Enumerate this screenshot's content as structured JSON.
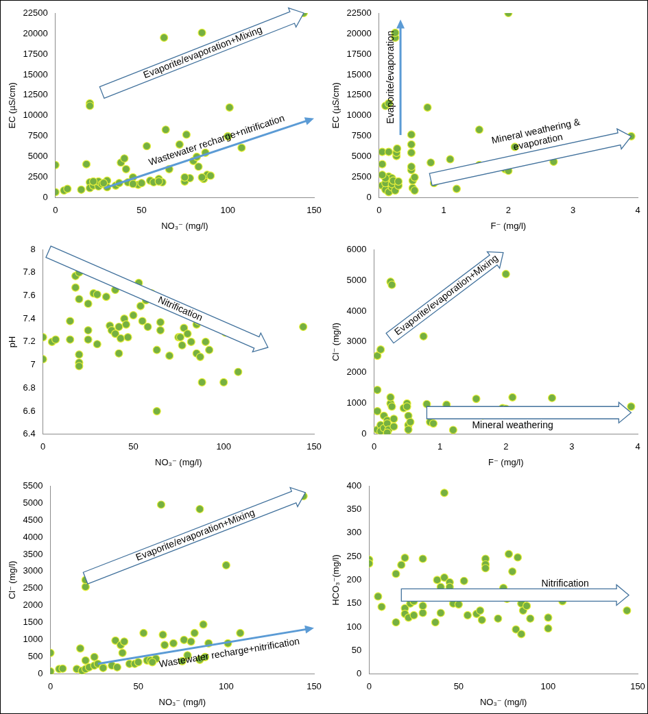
{
  "chart_data": [
    {
      "type": "scatter",
      "x_label": "NO₃⁻ (mg/l)",
      "y_label": "EC (µS/cm)",
      "color": "#76b041",
      "marker": "circle",
      "grid": false,
      "xlim": [
        0,
        150
      ],
      "xticks": [
        0,
        50,
        100,
        150
      ],
      "ylim": [
        0,
        22500
      ],
      "yticks": [
        0,
        2500,
        5000,
        7500,
        10000,
        12500,
        15000,
        17500,
        20000,
        22500
      ],
      "x": [
        0,
        0,
        5,
        7,
        15,
        18,
        20,
        20,
        20,
        20,
        22,
        25,
        25,
        27,
        30,
        30,
        35,
        37,
        38,
        40,
        41,
        42,
        45,
        48,
        50,
        53,
        55,
        57,
        60,
        62,
        63,
        64,
        66,
        72,
        75,
        76,
        78,
        80,
        82,
        83,
        85,
        86,
        87,
        88,
        90,
        100,
        101,
        108,
        144,
        85,
        75,
        60,
        45,
        28,
        22
      ],
      "values": [
        4000,
        700,
        900,
        1100,
        1000,
        4100,
        11500,
        11200,
        1900,
        1200,
        1500,
        1400,
        2000,
        1700,
        2100,
        1300,
        1500,
        1800,
        4300,
        4800,
        3500,
        1900,
        2500,
        1600,
        1800,
        6300,
        2100,
        1900,
        2300,
        1900,
        19500,
        8300,
        3500,
        6500,
        2000,
        7700,
        2400,
        4500,
        5000,
        3800,
        20100,
        2300,
        5500,
        2800,
        2700,
        7500,
        11000,
        6100,
        22500,
        2500,
        2500,
        2000,
        1700,
        1800,
        2000
      ],
      "annotations": [
        {
          "text": "Evaporite/evaporation+Mixing"
        },
        {
          "text": "Wastewater recharge+nitrification"
        }
      ]
    },
    {
      "type": "scatter",
      "x_label": "F⁻ (mg/l)",
      "y_label": "EC (µS/cm)",
      "color": "#76b041",
      "marker": "circle",
      "grid": false,
      "xlim": [
        0,
        4
      ],
      "xticks": [
        0,
        1,
        2,
        3,
        4
      ],
      "ylim": [
        0,
        22500
      ],
      "yticks": [
        0,
        2500,
        5000,
        7500,
        10000,
        12500,
        15000,
        17500,
        20000,
        22500
      ],
      "x": [
        0.05,
        0.1,
        0.15,
        0.25,
        0.25,
        0.27,
        0.27,
        0.28,
        0.05,
        0.1,
        0.1,
        0.15,
        0.15,
        0.2,
        0.2,
        0.2,
        0.22,
        0.25,
        0.3,
        0.3,
        0.1,
        0.05,
        0.5,
        0.5,
        0.5,
        0.5,
        0.5,
        0.52,
        0.52,
        0.55,
        0.55,
        0.75,
        0.8,
        0.85,
        0.9,
        1.1,
        1.2,
        1.55,
        1.55,
        1.6,
        1.95,
        2.0,
        2.0,
        2.1,
        2.7,
        3.9,
        0.05,
        0.15
      ],
      "values": [
        4100,
        11200,
        11500,
        19500,
        20100,
        5100,
        5500,
        6000,
        1500,
        1000,
        1800,
        700,
        2600,
        1300,
        2400,
        1700,
        2100,
        900,
        1500,
        2000,
        2400,
        2800,
        3400,
        3800,
        5500,
        6500,
        7700,
        2100,
        1200,
        900,
        2500,
        11000,
        4300,
        1800,
        2100,
        4700,
        1100,
        8300,
        4000,
        3400,
        3500,
        22500,
        3300,
        6200,
        4400,
        7500,
        5600,
        5600
      ],
      "annotations": [
        {
          "text": "Evaporite/evaporation"
        },
        {
          "text": [
            "Mineral weathering &",
            "evaporation"
          ]
        }
      ]
    },
    {
      "type": "scatter",
      "x_label": "NO₃⁻ (mg/l)",
      "y_label": "pH",
      "color": "#76b041",
      "marker": "circle",
      "grid": false,
      "xlim": [
        0,
        150
      ],
      "xticks": [
        0,
        50,
        100,
        150
      ],
      "ylim": [
        6.4,
        8
      ],
      "yticks": [
        6.4,
        6.6,
        6.8,
        7,
        7.2,
        7.4,
        7.6,
        7.8,
        8
      ],
      "x": [
        0,
        0,
        5,
        7,
        15,
        15,
        18,
        18,
        20,
        20,
        20,
        20,
        20,
        25,
        25,
        25,
        28,
        30,
        30,
        35,
        37,
        38,
        40,
        40,
        42,
        42,
        43,
        45,
        46,
        47,
        50,
        53,
        54,
        55,
        57,
        58,
        60,
        63,
        63,
        65,
        65,
        70,
        75,
        76,
        78,
        77,
        80,
        82,
        85,
        85,
        86,
        87,
        88,
        90,
        92,
        100,
        101,
        108,
        144
      ],
      "values": [
        7.24,
        7.05,
        7.2,
        7.22,
        7.38,
        7.22,
        7.77,
        7.67,
        7.8,
        7.57,
        7.09,
        7.02,
        6.99,
        7.53,
        7.3,
        7.22,
        7.62,
        7.61,
        7.18,
        7.59,
        7.34,
        7.3,
        7.65,
        7.27,
        7.1,
        7.33,
        7.23,
        7.4,
        7.35,
        7.24,
        7.43,
        7.71,
        7.51,
        7.38,
        7.56,
        7.33,
        7.62,
        6.6,
        7.13,
        7.37,
        7.3,
        7.08,
        7.24,
        7.24,
        7.32,
        7.17,
        7.27,
        7.2,
        7.1,
        7.35,
        7.38,
        7.07,
        6.85,
        7.2,
        7.13,
        6.85,
        7.28,
        6.94,
        7.33
      ],
      "annotations": [
        {
          "text": "Nitrification"
        }
      ]
    },
    {
      "type": "scatter",
      "x_label": "F⁻ (mg/l)",
      "y_label": "Cl⁻ (mg/l)",
      "color": "#76b041",
      "marker": "circle",
      "grid": false,
      "xlim": [
        0,
        4
      ],
      "xticks": [
        0,
        1,
        2,
        3,
        4
      ],
      "ylim": [
        0,
        6000
      ],
      "yticks": [
        0,
        1000,
        2000,
        3000,
        4000,
        5000,
        6000
      ],
      "x": [
        0.05,
        0.1,
        0.25,
        0.27,
        0.75,
        2.0,
        0.05,
        0.05,
        0.05,
        0.1,
        0.1,
        0.15,
        0.15,
        0.2,
        0.2,
        0.22,
        0.25,
        0.25,
        0.27,
        0.3,
        0.3,
        0.2,
        0.45,
        0.5,
        0.5,
        0.52,
        0.52,
        0.52,
        0.55,
        0.8,
        0.85,
        0.9,
        1.1,
        1.2,
        1.55,
        1.55,
        1.65,
        1.95,
        2.0,
        2.1,
        2.7,
        3.9
      ],
      "values": [
        2550,
        2750,
        4950,
        4850,
        3180,
        5200,
        1440,
        750,
        150,
        300,
        100,
        600,
        200,
        450,
        350,
        150,
        1000,
        1200,
        900,
        500,
        250,
        50,
        850,
        1000,
        900,
        600,
        300,
        150,
        400,
        980,
        400,
        350,
        960,
        140,
        1150,
        630,
        610,
        850,
        830,
        1200,
        1180,
        900
      ],
      "annotations": [
        {
          "text": "Evaporite/evaporation+Mixing"
        },
        {
          "text": "Mineral weathering"
        }
      ]
    },
    {
      "type": "scatter",
      "x_label": "NO₃⁻ (mg/l)",
      "y_label": "Cl⁻ (mg/l)",
      "color": "#76b041",
      "marker": "circle",
      "grid": false,
      "xlim": [
        0,
        150
      ],
      "xticks": [
        0,
        50,
        100,
        150
      ],
      "ylim": [
        0,
        5500
      ],
      "yticks": [
        0,
        500,
        1000,
        1500,
        2000,
        2500,
        3000,
        3500,
        4000,
        4500,
        5000,
        5500
      ],
      "x": [
        0,
        0,
        5,
        7,
        15,
        17,
        18,
        20,
        20,
        20,
        20,
        22,
        25,
        25,
        27,
        30,
        35,
        37,
        38,
        40,
        41,
        42,
        45,
        48,
        50,
        53,
        55,
        57,
        60,
        63,
        64,
        65,
        70,
        75,
        76,
        78,
        80,
        82,
        85,
        85,
        87,
        88,
        90,
        100,
        101,
        108,
        144,
        58,
        30
      ],
      "values": [
        620,
        80,
        150,
        160,
        150,
        750,
        100,
        2550,
        2750,
        400,
        150,
        200,
        500,
        250,
        300,
        200,
        250,
        980,
        200,
        850,
        620,
        950,
        300,
        300,
        350,
        1200,
        400,
        400,
        450,
        4950,
        1150,
        850,
        900,
        380,
        1000,
        550,
        950,
        1200,
        4820,
        420,
        1450,
        500,
        900,
        3180,
        900,
        1200,
        5200,
        350,
        180
      ],
      "annotations": [
        {
          "text": "Evaporite/evaporation+Mixing"
        },
        {
          "text": "Wastewater recharge+nitrification"
        }
      ]
    },
    {
      "type": "scatter",
      "x_label": "NO₃⁻ (mg/l)",
      "y_label": "HCO₃⁻(mg/l)",
      "color": "#76b041",
      "marker": "circle",
      "grid": false,
      "xlim": [
        0,
        150
      ],
      "xticks": [
        0,
        50,
        100,
        150
      ],
      "ylim": [
        0,
        400
      ],
      "yticks": [
        0,
        50,
        100,
        150,
        200,
        250,
        300,
        350,
        400
      ],
      "x": [
        0,
        0,
        5,
        7,
        15,
        15,
        18,
        20,
        20,
        20,
        22,
        23,
        25,
        25,
        28,
        30,
        30,
        30,
        35,
        37,
        38,
        40,
        40,
        42,
        42,
        45,
        45,
        47,
        50,
        53,
        54,
        55,
        58,
        60,
        62,
        63,
        65,
        65,
        65,
        70,
        72,
        75,
        77,
        78,
        80,
        82,
        83,
        85,
        85,
        86,
        88,
        90,
        90,
        100,
        100,
        108,
        144
      ],
      "values": [
        243,
        235,
        165,
        143,
        213,
        110,
        232,
        247,
        140,
        128,
        120,
        150,
        155,
        125,
        165,
        245,
        130,
        145,
        170,
        110,
        200,
        130,
        185,
        205,
        385,
        195,
        185,
        150,
        148,
        198,
        165,
        125,
        165,
        128,
        135,
        115,
        245,
        233,
        225,
        165,
        118,
        183,
        160,
        255,
        218,
        95,
        248,
        150,
        85,
        135,
        145,
        165,
        118,
        120,
        97,
        155,
        135
      ],
      "annotations": [
        {
          "text": "Nitrification"
        }
      ]
    }
  ]
}
